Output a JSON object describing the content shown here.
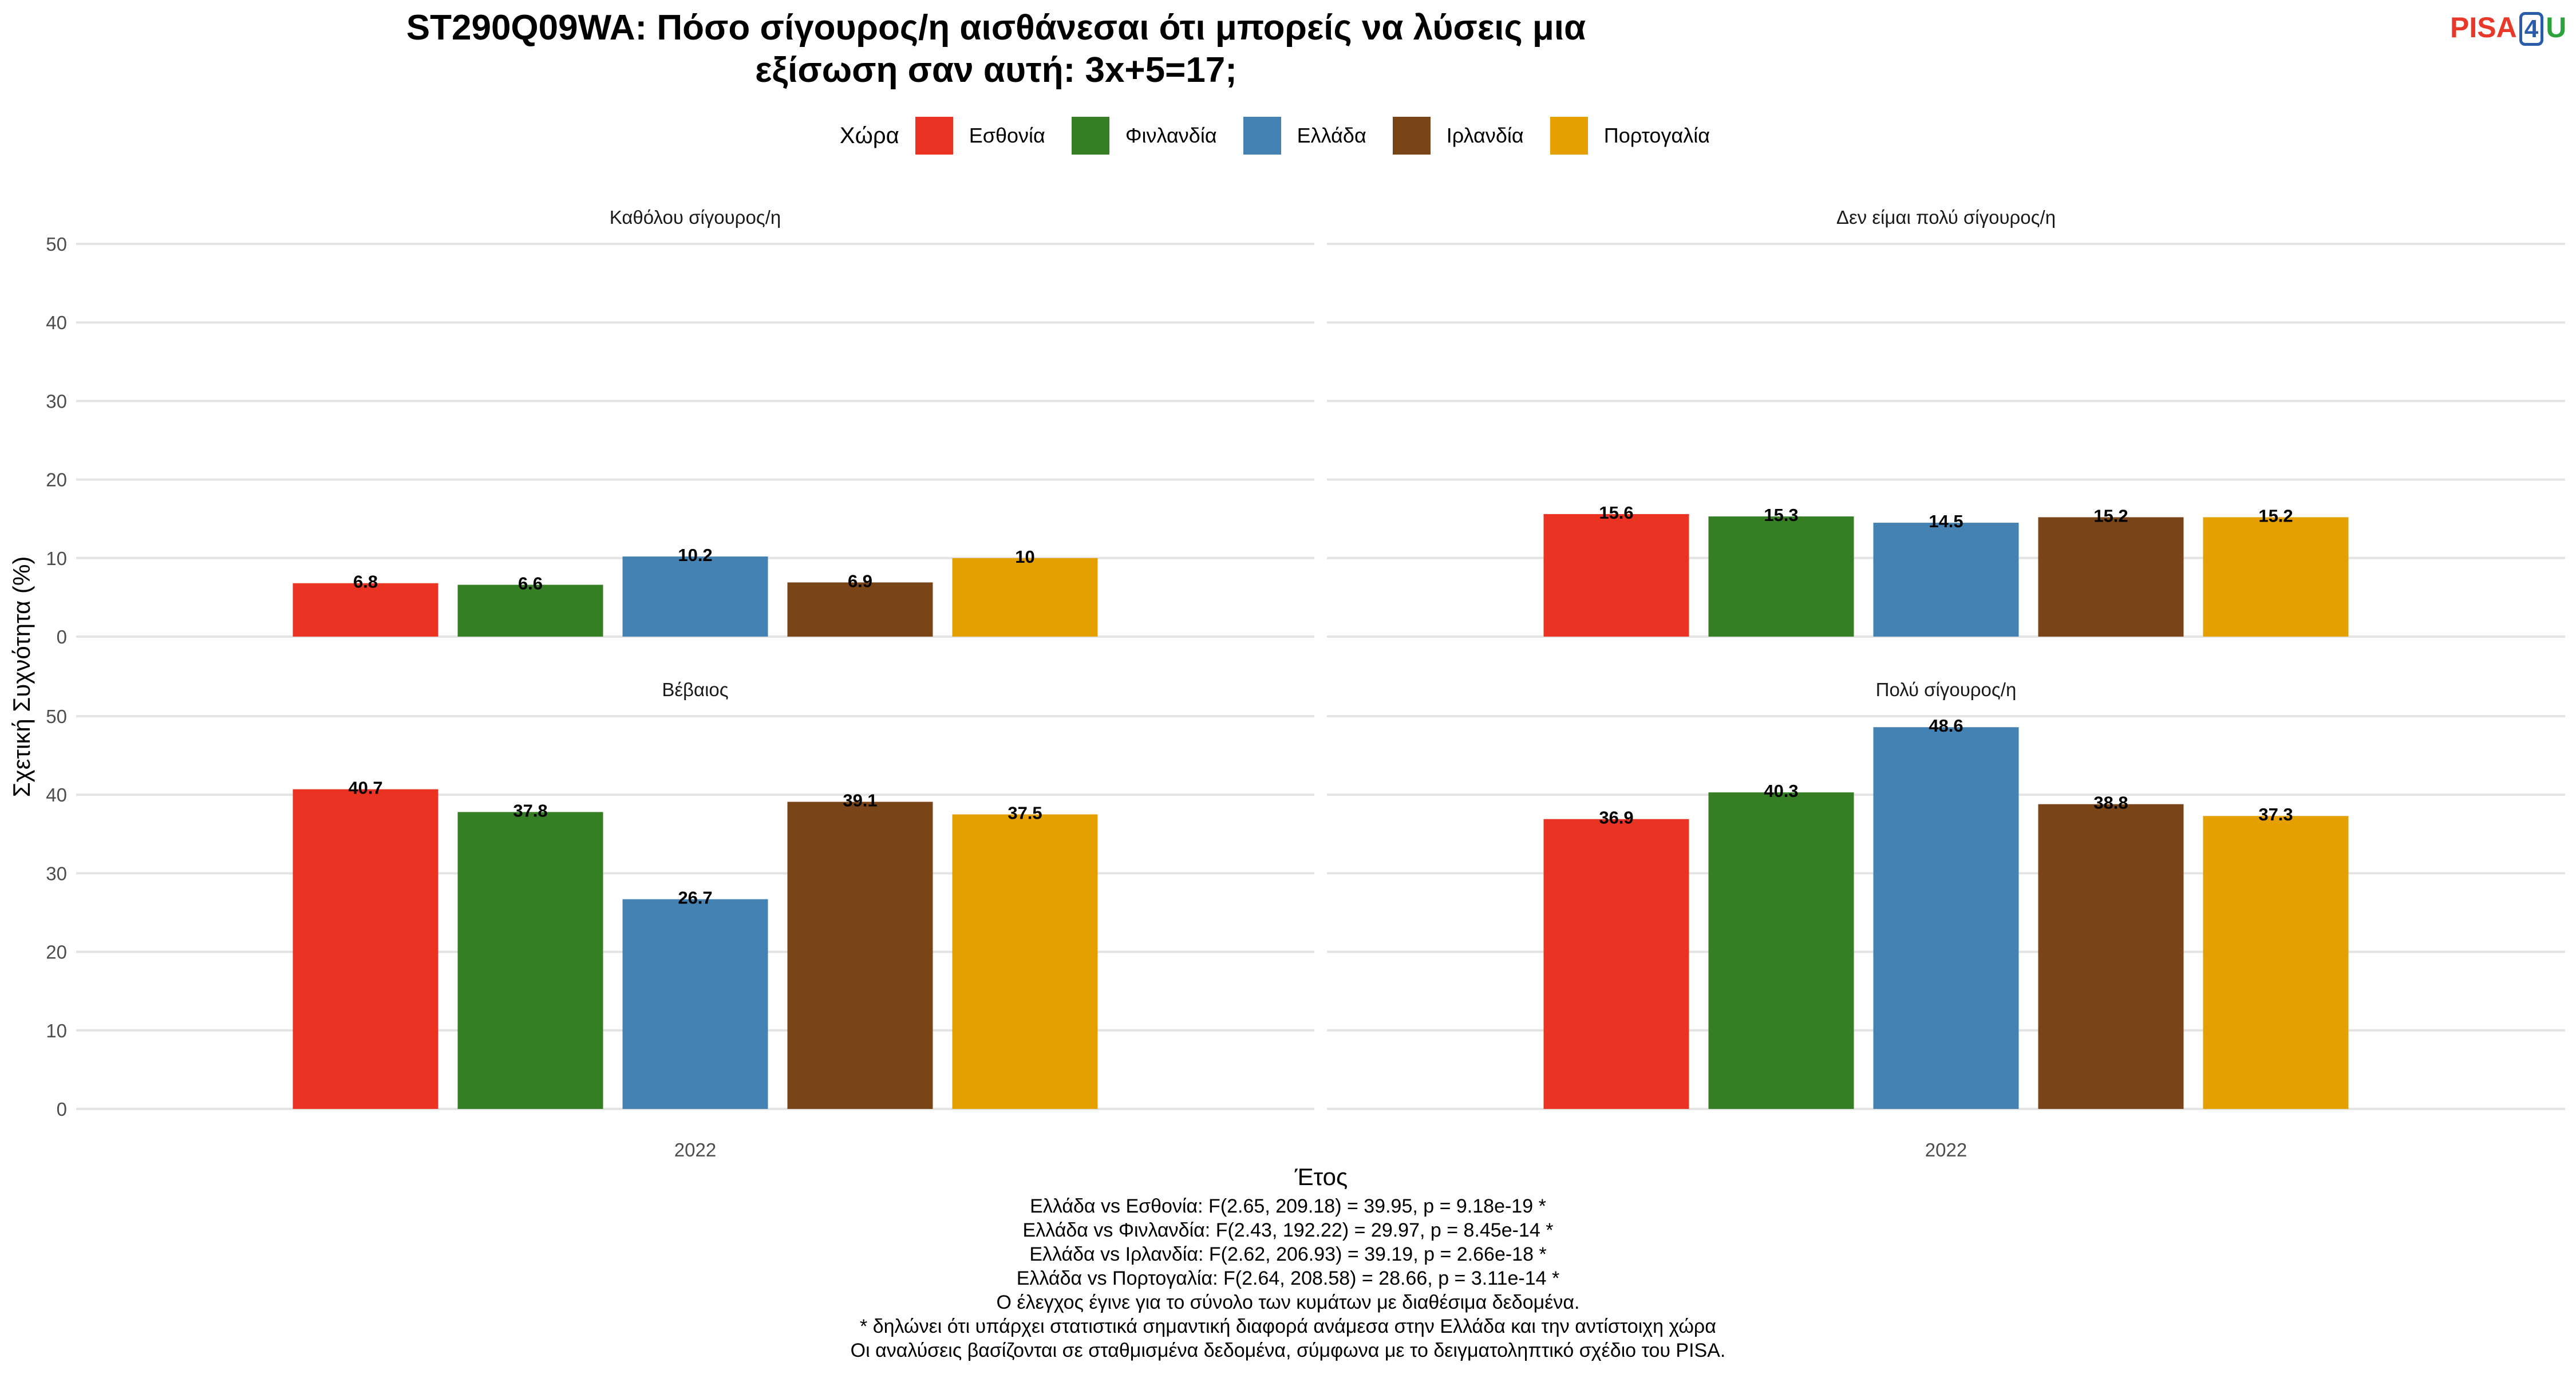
{
  "title_lines": [
    "ST290Q09WA: Πόσο σίγουρος/η αισθάνεσαι ότι μπορείς να λύσεις μια",
    "εξίσωση σαν αυτή: 3x+5=17;"
  ],
  "logo": {
    "part1": "PISA",
    "part2": "4",
    "part3": "U"
  },
  "legend": {
    "title": "Χώρα",
    "items": [
      {
        "label": "Εσθονία",
        "color": "#ea3323"
      },
      {
        "label": "Φινλανδία",
        "color": "#367e24"
      },
      {
        "label": "Ελλάδα",
        "color": "#4582b4"
      },
      {
        "label": "Ιρλανδία",
        "color": "#794417"
      },
      {
        "label": "Πορτογαλία",
        "color": "#e5a000"
      }
    ]
  },
  "chart_data": {
    "type": "bar",
    "xlabel": "Έτος",
    "ylabel": "Σχετική Συχνότητα (%)",
    "ylim": [
      0,
      50
    ],
    "yticks": [
      0,
      10,
      20,
      30,
      40,
      50
    ],
    "categories": [
      "2022"
    ],
    "series_names": [
      "Εσθονία",
      "Φινλανδία",
      "Ελλάδα",
      "Ιρλανδία",
      "Πορτογαλία"
    ],
    "panels": [
      {
        "title": "Καθόλου σίγουρος/η",
        "values": [
          6.8,
          6.6,
          10.2,
          6.9,
          10
        ]
      },
      {
        "title": "Δεν είμαι πολύ σίγουρος/η",
        "values": [
          15.6,
          15.3,
          14.5,
          15.2,
          15.2
        ]
      },
      {
        "title": "Βέβαιος",
        "values": [
          40.7,
          37.8,
          26.7,
          39.1,
          37.5
        ]
      },
      {
        "title": "Πολύ σίγουρος/η",
        "values": [
          36.9,
          40.3,
          48.6,
          38.8,
          37.3
        ]
      }
    ],
    "grid": true,
    "legend_position": "top"
  },
  "footer_lines": [
    "Ελλάδα vs Εσθονία: F(2.65, 209.18) = 39.95, p = 9.18e-19 *",
    "Ελλάδα vs Φινλανδία: F(2.43, 192.22) = 29.97, p = 8.45e-14 *",
    "Ελλάδα vs Ιρλανδία: F(2.62, 206.93) = 39.19, p = 2.66e-18 *",
    "Ελλάδα vs Πορτογαλία: F(2.64, 208.58) = 28.66, p = 3.11e-14 *",
    "Ο έλεγχος έγινε για το σύνολο των κυμάτων με διαθέσιμα δεδομένα.",
    "* δηλώνει ότι υπάρχει στατιστικά σημαντική διαφορά ανάμεσα στην Ελλάδα και την αντίστοιχη χώρα",
    "Οι αναλύσεις βασίζονται σε σταθμισμένα δεδομένα, σύμφωνα με το δειγματοληπτικό σχέδιο του PISA."
  ]
}
